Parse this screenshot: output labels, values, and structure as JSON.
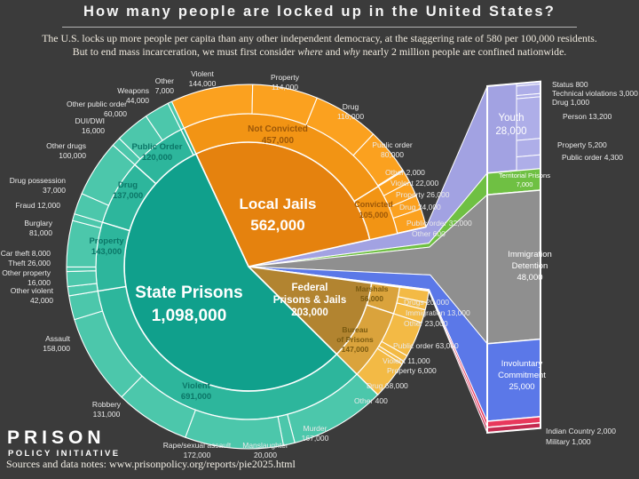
{
  "header": {
    "title": "How many people are locked up in the United States?",
    "subtitle_line1": "The U.S. locks up more people per capita than any other independent democracy, at the staggering rate of 580 per 100,000 residents.",
    "subtitle_line2_pre": "But to end mass incarceration, we must first consider ",
    "subtitle_word_where": "where",
    "subtitle_mid": " and ",
    "subtitle_word_why": "why",
    "subtitle_line2_post": " nearly 2 million people are confined nationwide."
  },
  "footer": {
    "logo_line1": "PRISON",
    "logo_line2": "POLICY INITIATIVE",
    "source": "Sources and data notes: www.prisonpolicy.org/reports/pie2025.html"
  },
  "chart_data": {
    "type": "pie",
    "title": "How many people are locked up in the United States?",
    "total": 1974000,
    "pie": {
      "start_angle": -25,
      "systems": [
        {
          "id": "local_jails",
          "name": "Local Jails",
          "value": 562000,
          "value_label": "562,000",
          "colors": [
            "#e5820e",
            "#f29414",
            "#fba11f"
          ],
          "children": [
            {
              "name": "Not Convicted",
              "value": 457000,
              "value_label": "457,000",
              "children": [
                {
                  "name": "Violent",
                  "value": 144000
                },
                {
                  "name": "Property",
                  "value": 114000
                },
                {
                  "name": "Drug",
                  "value": 116000
                },
                {
                  "name": "Public order",
                  "value": 80000
                },
                {
                  "name": "Other",
                  "value": 2000
                }
              ]
            },
            {
              "name": "Convicted",
              "value": 105000,
              "value_label": "105,000",
              "children": [
                {
                  "name": "Violent",
                  "value": 22000
                },
                {
                  "name": "Property",
                  "value": 26000
                },
                {
                  "name": "Drug",
                  "value": 24000
                },
                {
                  "name": "Public order",
                  "value": 32000
                },
                {
                  "name": "Other",
                  "value": 600
                }
              ]
            }
          ]
        },
        {
          "id": "youth",
          "name": "Youth",
          "value": 28000,
          "value_label": "28,000",
          "thin": true,
          "color": "#a2a2e2"
        },
        {
          "id": "territorial",
          "name": "Territorial Prisons",
          "value": 7000,
          "value_label": "7,000",
          "thin": true,
          "color": "#6fc043"
        },
        {
          "id": "immigration",
          "name": "Immigration Detention",
          "value": 48000,
          "value_label": "48,000",
          "thin": true,
          "color": "#8f8f8f"
        },
        {
          "id": "involuntary",
          "name": "Involuntary Commitment",
          "value": 25000,
          "value_label": "25,000",
          "thin": true,
          "color": "#5b78e8"
        },
        {
          "id": "indian_country",
          "name": "Indian Country",
          "value": 2000,
          "value_label": "2,000",
          "thin": true,
          "color": "#e8385c"
        },
        {
          "id": "military",
          "name": "Military",
          "value": 1000,
          "value_label": "1,000",
          "thin": true,
          "color": "#c42b50"
        },
        {
          "id": "federal",
          "name": "Federal Prisons & Jails",
          "value": 203000,
          "value_label": "203,000",
          "colors": [
            "#b28430",
            "#daa33c",
            "#f3ba45"
          ],
          "children": [
            {
              "name": "Marshals",
              "value": 56000,
              "value_label": "56,000",
              "children": [
                {
                  "name": "Drugs",
                  "value": 20000
                },
                {
                  "name": "Immigration",
                  "value": 13000
                },
                {
                  "name": "Other",
                  "value": 23000
                }
              ]
            },
            {
              "name": "Bureau of Prisons",
              "value": 147000,
              "value_label": "147,000",
              "children": [
                {
                  "name": "Public order",
                  "value": 63000
                },
                {
                  "name": "Violent",
                  "value": 11000
                },
                {
                  "name": "Property",
                  "value": 6000
                },
                {
                  "name": "Drug",
                  "value": 68000
                },
                {
                  "name": "Other",
                  "value": 400
                }
              ]
            }
          ]
        },
        {
          "id": "state_prisons",
          "name": "State Prisons",
          "value": 1098000,
          "value_label": "1,098,000",
          "colors": [
            "#10a08c",
            "#2db69c",
            "#4cc7ab"
          ],
          "children": [
            {
              "name": "Violent",
              "value": 691000,
              "value_label": "691,000",
              "children": [
                {
                  "name": "Murder",
                  "value": 167000
                },
                {
                  "name": "Manslaughter",
                  "value": 20000
                },
                {
                  "name": "Rape/sexual assault",
                  "value": 172000
                },
                {
                  "name": "Robbery",
                  "value": 131000
                },
                {
                  "name": "Assault",
                  "value": 158000
                },
                {
                  "name": "Other violent",
                  "value": 42000
                }
              ]
            },
            {
              "name": "Property",
              "value": 143000,
              "value_label": "143,000",
              "children": [
                {
                  "name": "Other property",
                  "value": 16000
                },
                {
                  "name": "Theft",
                  "value": 26000
                },
                {
                  "name": "Car theft",
                  "value": 8000
                },
                {
                  "name": "Burglary",
                  "value": 81000
                },
                {
                  "name": "Fraud",
                  "value": 12000
                }
              ]
            },
            {
              "name": "Drug",
              "value": 137000,
              "value_label": "137,000",
              "children": [
                {
                  "name": "Drug possession",
                  "value": 37000
                },
                {
                  "name": "Other drugs",
                  "value": 100000
                }
              ]
            },
            {
              "name": "Public Order",
              "value": 120000,
              "value_label": "120,000",
              "children": [
                {
                  "name": "DUI/DWI",
                  "value": 16000
                },
                {
                  "name": "Other public order",
                  "value": 60000
                },
                {
                  "name": "Weapons",
                  "value": 44000
                }
              ]
            },
            {
              "name": "Other",
              "value": 7000,
              "value_label": "7,000",
              "children": [
                {
                  "name": "Other",
                  "value": 7000
                }
              ]
            }
          ]
        }
      ]
    },
    "bar": {
      "segments": [
        {
          "id": "youth",
          "name": "Youth",
          "value": 28000,
          "color": "#a2a2e2",
          "sub": [
            {
              "name": "Status",
              "value": 800
            },
            {
              "name": "Technical violations",
              "value": 3000
            },
            {
              "name": "Drug",
              "value": 1000
            },
            {
              "name": "Person",
              "value": 13200
            },
            {
              "name": "Property",
              "value": 5200
            },
            {
              "name": "Public order",
              "value": 4300
            }
          ]
        },
        {
          "id": "territorial",
          "name": "Territorial Prisons",
          "value": 7000,
          "color": "#6fc043"
        },
        {
          "id": "immigration",
          "name": "Immigration Detention",
          "value": 48000,
          "color": "#8f8f8f"
        },
        {
          "id": "involuntary",
          "name": "Involuntary Commitment",
          "value": 25000,
          "color": "#5b78e8"
        },
        {
          "id": "indian_country",
          "name": "Indian Country",
          "value": 2000,
          "color": "#e8385c"
        },
        {
          "id": "military",
          "name": "Military",
          "value": 1000,
          "color": "#c42b50"
        }
      ]
    },
    "callouts": [
      {
        "id": "state_center",
        "lines": [
          "State Prisons",
          "1,098,000"
        ]
      },
      {
        "id": "jails_center",
        "lines": [
          "Local Jails",
          "562,000"
        ]
      },
      {
        "id": "federal_center",
        "lines": [
          "Federal",
          "Prisons & Jails",
          "203,000"
        ]
      },
      {
        "id": "notconv_ring",
        "lines": [
          "Not Convicted",
          "457,000"
        ]
      },
      {
        "id": "conv_ring",
        "lines": [
          "Convicted",
          "105,000"
        ]
      },
      {
        "id": "po_ring",
        "lines": [
          "Public Order",
          "120,000"
        ]
      },
      {
        "id": "drug_ring",
        "lines": [
          "Drug",
          "137,000"
        ]
      },
      {
        "id": "prop_ring",
        "lines": [
          "Property",
          "143,000"
        ]
      },
      {
        "id": "violent_ring",
        "lines": [
          "Violent",
          "691,000"
        ]
      },
      {
        "id": "marshals_ring",
        "lines": [
          "Marshals",
          "56,000"
        ]
      },
      {
        "id": "bureau_ring",
        "lines": [
          "Bureau",
          "of Prisons",
          "147,000"
        ]
      },
      {
        "id": "youth_bar",
        "lines": [
          "Youth",
          "28,000"
        ]
      },
      {
        "id": "terr_bar",
        "lines": [
          "Territorial Prisons",
          "7,000"
        ]
      },
      {
        "id": "imm_bar",
        "lines": [
          "Immigration",
          "Detention",
          "48,000"
        ]
      },
      {
        "id": "inv_bar",
        "lines": [
          "Involuntary",
          "Commitment",
          "25,000"
        ]
      },
      {
        "id": "other7",
        "lines": [
          "Other",
          "7,000"
        ]
      },
      {
        "id": "weapons",
        "lines": [
          "Weapons",
          "44,000"
        ]
      },
      {
        "id": "other_po",
        "lines": [
          "Other public order",
          "60,000"
        ]
      },
      {
        "id": "dui",
        "lines": [
          "DUI/DWI",
          "16,000"
        ]
      },
      {
        "id": "other_drugs",
        "lines": [
          "Other drugs",
          "100,000"
        ]
      },
      {
        "id": "drug_poss",
        "lines": [
          "Drug possession",
          "37,000"
        ]
      },
      {
        "id": "fraud",
        "lines": [
          "Fraud 12,000"
        ]
      },
      {
        "id": "burglary",
        "lines": [
          "Burglary",
          "81,000"
        ]
      },
      {
        "id": "car_theft",
        "lines": [
          "Car theft 8,000"
        ]
      },
      {
        "id": "theft",
        "lines": [
          "Theft 26,000"
        ]
      },
      {
        "id": "other_prop",
        "lines": [
          "Other property",
          "16,000"
        ]
      },
      {
        "id": "other_violent",
        "lines": [
          "Other violent",
          "42,000"
        ]
      },
      {
        "id": "assault",
        "lines": [
          "Assault",
          "158,000"
        ]
      },
      {
        "id": "robbery",
        "lines": [
          "Robbery",
          "131,000"
        ]
      },
      {
        "id": "rape",
        "lines": [
          "Rape/sexual assault",
          "172,000"
        ]
      },
      {
        "id": "manslaughter",
        "lines": [
          "Manslaughter",
          "20,000"
        ]
      },
      {
        "id": "murder",
        "lines": [
          "Murder",
          "167,000"
        ]
      },
      {
        "id": "violent144",
        "lines": [
          "Violent",
          "144,000"
        ]
      },
      {
        "id": "property114",
        "lines": [
          "Property",
          "114,000"
        ]
      },
      {
        "id": "drug116",
        "lines": [
          "Drug",
          "116,000"
        ]
      },
      {
        "id": "po80",
        "lines": [
          "Public order",
          "80,000"
        ]
      },
      {
        "id": "other2000",
        "lines": [
          "Other 2,000"
        ]
      },
      {
        "id": "violent22",
        "lines": [
          "Violent 22,000"
        ]
      },
      {
        "id": "property26",
        "lines": [
          "Property 26,000"
        ]
      },
      {
        "id": "drug24",
        "lines": [
          "Drug 24,000"
        ]
      },
      {
        "id": "po32",
        "lines": [
          "Public order 32,000"
        ]
      },
      {
        "id": "other600",
        "lines": [
          "Other 600"
        ]
      },
      {
        "id": "drugs20",
        "lines": [
          "Drugs 20,000"
        ]
      },
      {
        "id": "imm13",
        "lines": [
          "Immigration 13,000"
        ]
      },
      {
        "id": "other23",
        "lines": [
          "Other 23,000"
        ]
      },
      {
        "id": "po63",
        "lines": [
          "Public order 63,000"
        ]
      },
      {
        "id": "violent11",
        "lines": [
          "Violent 11,000"
        ]
      },
      {
        "id": "property6",
        "lines": [
          "Property 6,000"
        ]
      },
      {
        "id": "drug68",
        "lines": [
          "Drug 68,000"
        ]
      },
      {
        "id": "other400",
        "lines": [
          "Other 400"
        ]
      },
      {
        "id": "status800",
        "lines": [
          "Status 800"
        ]
      },
      {
        "id": "tech3000",
        "lines": [
          "Technical violations 3,000"
        ]
      },
      {
        "id": "drug1000",
        "lines": [
          "Drug 1,000"
        ]
      },
      {
        "id": "person13200",
        "lines": [
          "Person 13,200"
        ]
      },
      {
        "id": "property5200",
        "lines": [
          "Property 5,200"
        ]
      },
      {
        "id": "po4300",
        "lines": [
          "Public order 4,300"
        ]
      },
      {
        "id": "indian2000",
        "lines": [
          "Indian Country 2,000"
        ]
      },
      {
        "id": "military1000",
        "lines": [
          "Military 1,000"
        ]
      }
    ]
  }
}
